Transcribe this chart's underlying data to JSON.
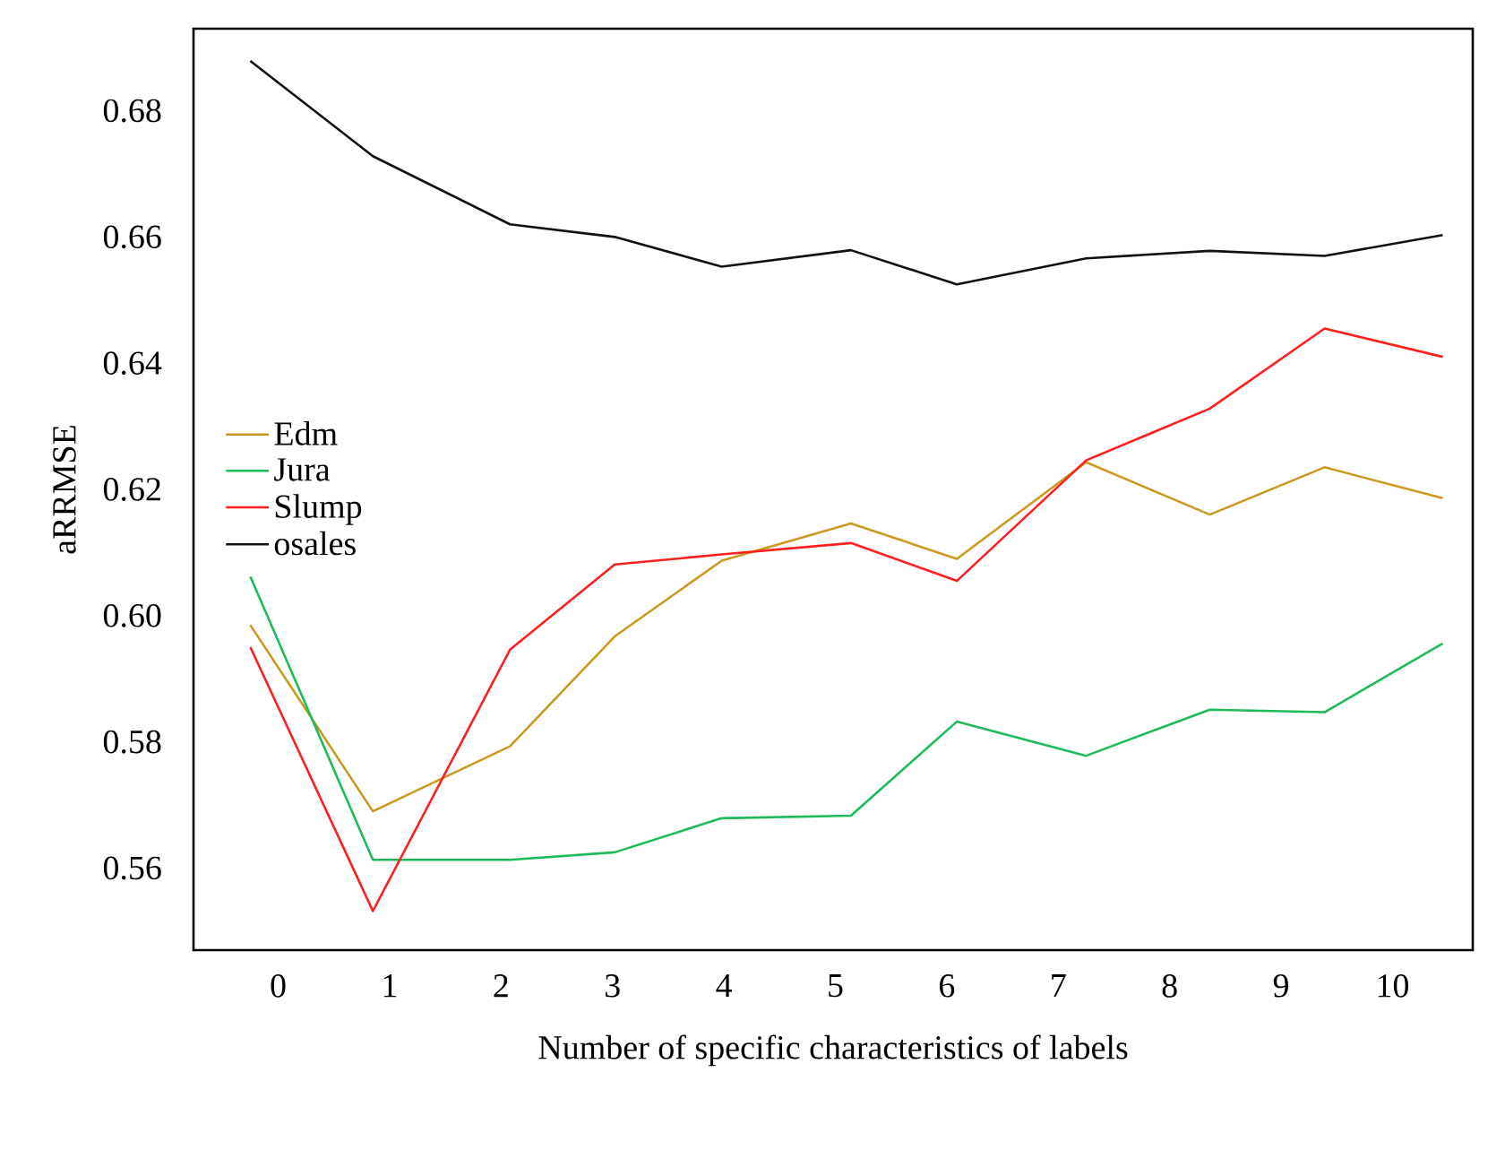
{
  "chart_data": {
    "type": "line",
    "xlabel": "Number of specific characteristics of labels",
    "ylabel": "aRRMSE",
    "x": [
      -0.25,
      0.85,
      2.08,
      3.02,
      3.98,
      5.14,
      6.09,
      7.25,
      8.36,
      9.39,
      10.45
    ],
    "xlim": [
      -0.76,
      10.72
    ],
    "xticks": [
      0,
      1,
      2,
      3,
      4,
      5,
      6,
      7,
      8,
      9,
      10
    ],
    "ylim": [
      0.547,
      0.693
    ],
    "yticks": [
      {
        "value": 0.56,
        "label": "0.56"
      },
      {
        "value": 0.58,
        "label": "0.58"
      },
      {
        "value": 0.6,
        "label": "0.60"
      },
      {
        "value": 0.62,
        "label": "0.62"
      },
      {
        "value": 0.64,
        "label": "0.64"
      },
      {
        "value": 0.66,
        "label": "0.66"
      },
      {
        "value": 0.68,
        "label": "0.68"
      }
    ],
    "legend": "left",
    "grid": false,
    "marker": "none",
    "line_style": "solid",
    "series": [
      {
        "name": "Edm",
        "color": "#c89a1e",
        "values": [
          0.5985,
          0.569,
          0.5793,
          0.5967,
          0.6087,
          0.6146,
          0.609,
          0.6243,
          0.616,
          0.6235,
          0.6186
        ]
      },
      {
        "name": "Jura",
        "color": "#1fba5a",
        "values": [
          0.6062,
          0.5613,
          0.5613,
          0.5625,
          0.5679,
          0.5683,
          0.5832,
          0.5778,
          0.5851,
          0.5847,
          0.5956
        ]
      },
      {
        "name": "Slump",
        "color": "#ff1f1f",
        "values": [
          0.595,
          0.5532,
          0.5946,
          0.6081,
          0.6097,
          0.6115,
          0.6055,
          0.6246,
          0.6328,
          0.6455,
          0.641
        ]
      },
      {
        "name": "osales",
        "color": "#111111",
        "values": [
          0.6879,
          0.6728,
          0.662,
          0.66,
          0.6553,
          0.6579,
          0.6525,
          0.6566,
          0.6578,
          0.657,
          0.6603
        ]
      }
    ]
  }
}
